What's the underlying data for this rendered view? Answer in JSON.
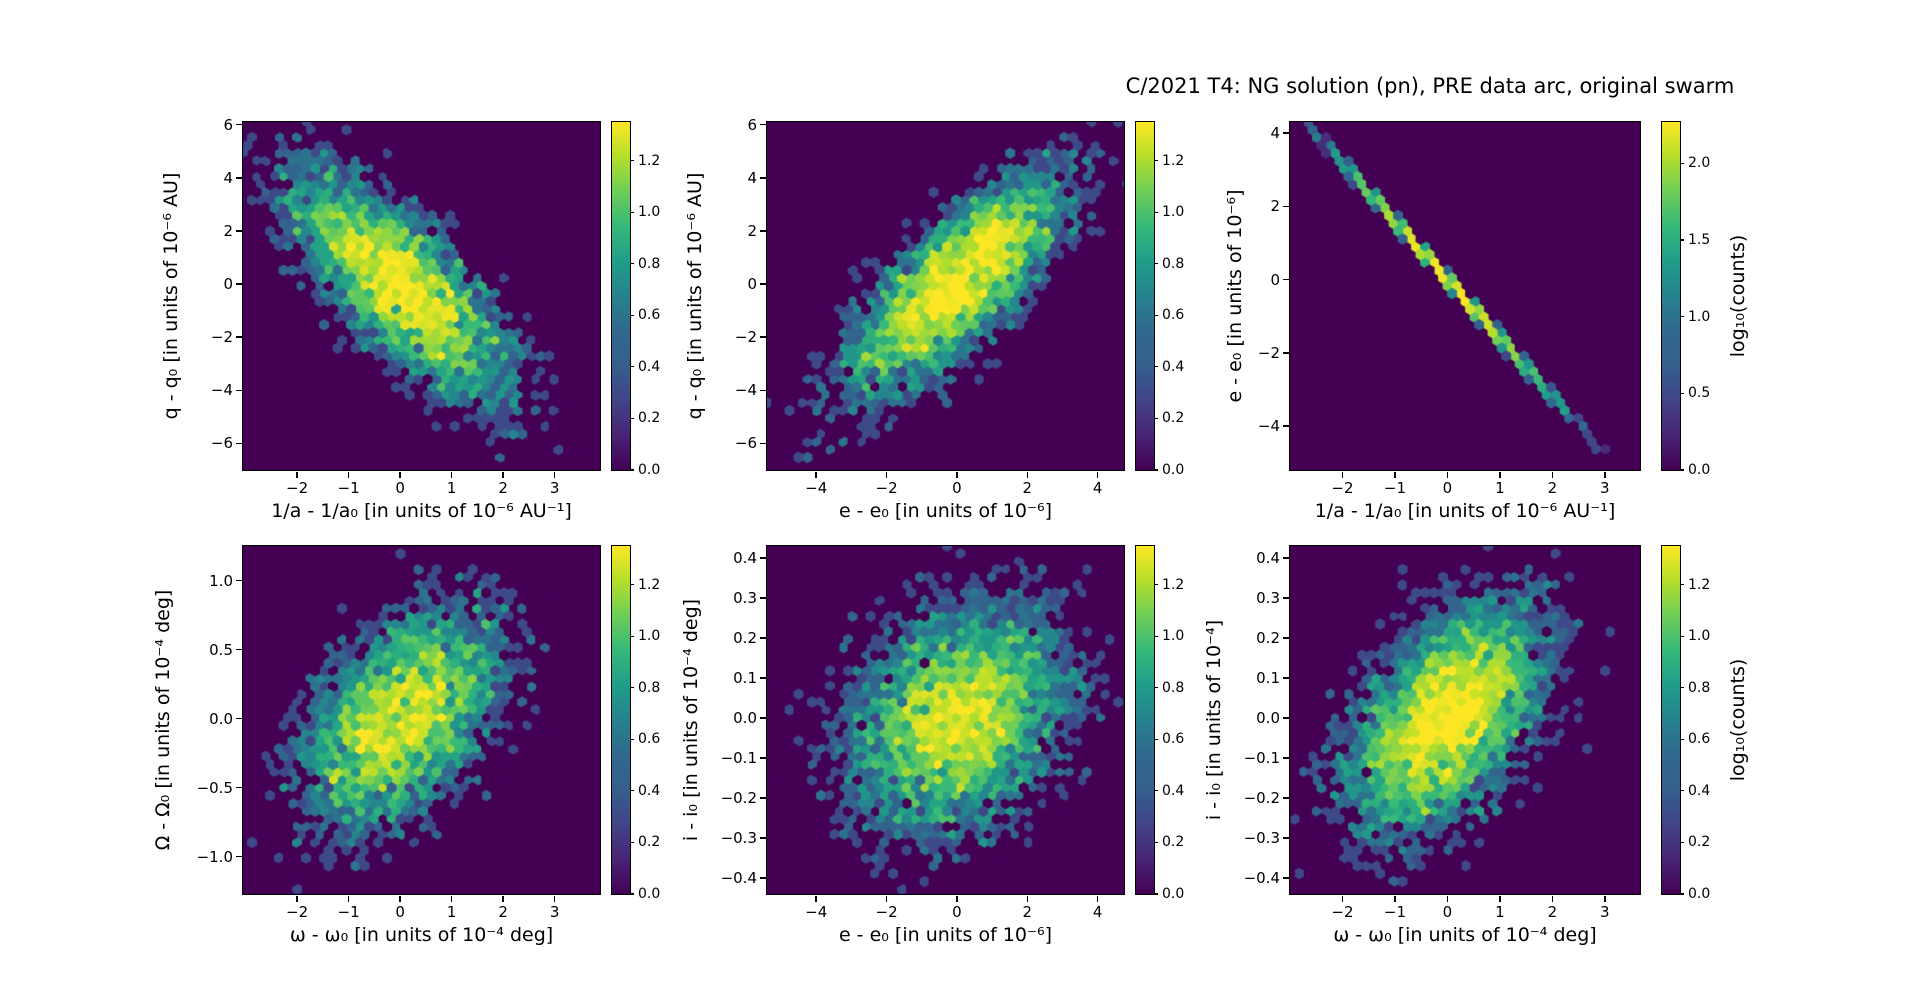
{
  "figure": {
    "title": "C/2021 T4: NG solution (pn), PRE data arc, original swarm",
    "background_color": "#ffffff",
    "colormap": "viridis",
    "colormap_min_color": "#440154",
    "colormap_max_color": "#fde725"
  },
  "chart_data": [
    {
      "id": "q-vs-inverse-a",
      "type": "hexbin",
      "xlabel": "1/a - 1/a₀ [in units of 10⁻⁶ AU⁻¹]",
      "ylabel": "q - q₀ [in units of 10⁻⁶ AU]",
      "xlim": [
        -3.05,
        3.88
      ],
      "ylim": [
        -7.0,
        6.1
      ],
      "xticks": [
        -2,
        -1,
        0,
        1,
        2,
        3
      ],
      "xtick_labels": [
        "−2",
        "−1",
        "0",
        "1",
        "2",
        "3"
      ],
      "yticks": [
        6,
        4,
        2,
        0,
        -2,
        -4,
        -6
      ],
      "ytick_labels": [
        "6",
        "4",
        "2",
        "0",
        "−2",
        "−4",
        "−6"
      ],
      "distribution": {
        "center_x": 0,
        "center_y": 0,
        "sigma_x": 1.15,
        "sigma_y": 2.3,
        "correlation": -0.75,
        "n_points": 5000,
        "seed": 11
      },
      "colorbar": {
        "vmin": 0.0,
        "vmax": 1.35,
        "ticks": [
          0.0,
          0.2,
          0.4,
          0.6,
          0.8,
          1.0,
          1.2
        ],
        "tick_labels": [
          "0.0",
          "0.2",
          "0.4",
          "0.6",
          "0.8",
          "1.0",
          "1.2"
        ],
        "label": ""
      }
    },
    {
      "id": "q-vs-e",
      "type": "hexbin",
      "xlabel": "e - e₀ [in units of 10⁻⁶]",
      "ylabel": "q - q₀ [in units of 10⁻⁶ AU]",
      "xlim": [
        -5.4,
        4.75
      ],
      "ylim": [
        -7.0,
        6.1
      ],
      "xticks": [
        -4,
        -2,
        0,
        2,
        4
      ],
      "xtick_labels": [
        "−4",
        "−2",
        "0",
        "2",
        "4"
      ],
      "yticks": [
        6,
        4,
        2,
        0,
        -2,
        -4,
        -6
      ],
      "ytick_labels": [
        "6",
        "4",
        "2",
        "0",
        "−2",
        "−4",
        "−6"
      ],
      "distribution": {
        "center_x": 0,
        "center_y": 0,
        "sigma_x": 1.7,
        "sigma_y": 2.3,
        "correlation": 0.78,
        "n_points": 5000,
        "seed": 22
      },
      "colorbar": {
        "vmin": 0.0,
        "vmax": 1.35,
        "ticks": [
          0.0,
          0.2,
          0.4,
          0.6,
          0.8,
          1.0,
          1.2
        ],
        "tick_labels": [
          "0.0",
          "0.2",
          "0.4",
          "0.6",
          "0.8",
          "1.0",
          "1.2"
        ],
        "label": ""
      }
    },
    {
      "id": "e-vs-inverse-a",
      "type": "hexbin",
      "xlabel": "1/a - 1/a₀ [in units of 10⁻⁶ AU⁻¹]",
      "ylabel": "e - e₀ [in units of 10⁻⁶]",
      "xlim": [
        -3.0,
        3.67
      ],
      "ylim": [
        -5.2,
        4.3
      ],
      "xticks": [
        -2,
        -1,
        0,
        1,
        2,
        3
      ],
      "xtick_labels": [
        "−2",
        "−1",
        "0",
        "1",
        "2",
        "3"
      ],
      "yticks": [
        4,
        2,
        0,
        -2,
        -4
      ],
      "ytick_labels": [
        "4",
        "2",
        "0",
        "−2",
        "−4"
      ],
      "distribution": {
        "center_x": 0,
        "center_y": 0,
        "sigma_x": 1.0,
        "sigma_y": 1.6,
        "correlation": -0.9995,
        "n_points": 4000,
        "seed": 33
      },
      "colorbar": {
        "vmin": 0.0,
        "vmax": 2.27,
        "ticks": [
          0.0,
          0.5,
          1.0,
          1.5,
          2.0
        ],
        "tick_labels": [
          "0.0",
          "0.5",
          "1.0",
          "1.5",
          "2.0"
        ],
        "label": "log₁₀(counts)"
      }
    },
    {
      "id": "Omega-vs-omega",
      "type": "hexbin",
      "xlabel": "ω - ω₀ [in units of 10⁻⁴ deg]",
      "ylabel": "Ω - Ω₀ [in units of 10⁻⁴ deg]",
      "xlim": [
        -3.05,
        3.88
      ],
      "ylim": [
        -1.27,
        1.25
      ],
      "xticks": [
        -2,
        -1,
        0,
        1,
        2,
        3
      ],
      "xtick_labels": [
        "−2",
        "−1",
        "0",
        "1",
        "2",
        "3"
      ],
      "yticks": [
        1.0,
        0.5,
        0.0,
        -0.5,
        -1.0
      ],
      "ytick_labels": [
        "1.0",
        "0.5",
        "0.0",
        "−0.5",
        "−1.0"
      ],
      "distribution": {
        "center_x": 0,
        "center_y": 0,
        "sigma_x": 1.05,
        "sigma_y": 0.42,
        "correlation": 0.45,
        "n_points": 5000,
        "seed": 44
      },
      "colorbar": {
        "vmin": 0.0,
        "vmax": 1.35,
        "ticks": [
          0.0,
          0.2,
          0.4,
          0.6,
          0.8,
          1.0,
          1.2
        ],
        "tick_labels": [
          "0.0",
          "0.2",
          "0.4",
          "0.6",
          "0.8",
          "1.0",
          "1.2"
        ],
        "label": ""
      }
    },
    {
      "id": "i-vs-e",
      "type": "hexbin",
      "xlabel": "e - e₀ [in units of 10⁻⁶]",
      "ylabel": "i - i₀ [in units of 10⁻⁴ deg]",
      "xlim": [
        -5.4,
        4.75
      ],
      "ylim": [
        -0.44,
        0.43
      ],
      "xticks": [
        -4,
        -2,
        0,
        2,
        4
      ],
      "xtick_labels": [
        "−4",
        "−2",
        "0",
        "2",
        "4"
      ],
      "yticks": [
        0.4,
        0.3,
        0.2,
        0.1,
        0.0,
        -0.1,
        -0.2,
        -0.3,
        -0.4
      ],
      "ytick_labels": [
        "0.4",
        "0.3",
        "0.2",
        "0.1",
        "0.0",
        "−0.1",
        "−0.2",
        "−0.3",
        "−0.4"
      ],
      "distribution": {
        "center_x": 0,
        "center_y": 0,
        "sigma_x": 1.7,
        "sigma_y": 0.15,
        "correlation": 0.25,
        "n_points": 6000,
        "seed": 55
      },
      "colorbar": {
        "vmin": 0.0,
        "vmax": 1.35,
        "ticks": [
          0.0,
          0.2,
          0.4,
          0.6,
          0.8,
          1.0,
          1.2
        ],
        "tick_labels": [
          "0.0",
          "0.2",
          "0.4",
          "0.6",
          "0.8",
          "1.0",
          "1.2"
        ],
        "label": ""
      }
    },
    {
      "id": "i-vs-omega",
      "type": "hexbin",
      "xlabel": "ω - ω₀ [in units of 10⁻⁴ deg]",
      "ylabel": "i - i₀ [in units of 10⁻⁴]",
      "xlim": [
        -3.0,
        3.67
      ],
      "ylim": [
        -0.44,
        0.43
      ],
      "xticks": [
        -2,
        -1,
        0,
        1,
        2,
        3
      ],
      "xtick_labels": [
        "−2",
        "−1",
        "0",
        "1",
        "2",
        "3"
      ],
      "yticks": [
        0.4,
        0.3,
        0.2,
        0.1,
        0.0,
        -0.1,
        -0.2,
        -0.3,
        -0.4
      ],
      "ytick_labels": [
        "0.4",
        "0.3",
        "0.2",
        "0.1",
        "0.0",
        "−0.1",
        "−0.2",
        "−0.3",
        "−0.4"
      ],
      "distribution": {
        "center_x": 0,
        "center_y": 0,
        "sigma_x": 1.0,
        "sigma_y": 0.15,
        "correlation": 0.5,
        "n_points": 6000,
        "seed": 66
      },
      "colorbar": {
        "vmin": 0.0,
        "vmax": 1.35,
        "ticks": [
          0.0,
          0.2,
          0.4,
          0.6,
          0.8,
          1.0,
          1.2
        ],
        "tick_labels": [
          "0.0",
          "0.2",
          "0.4",
          "0.6",
          "0.8",
          "1.0",
          "1.2"
        ],
        "label": "log₁₀(counts)"
      }
    }
  ]
}
